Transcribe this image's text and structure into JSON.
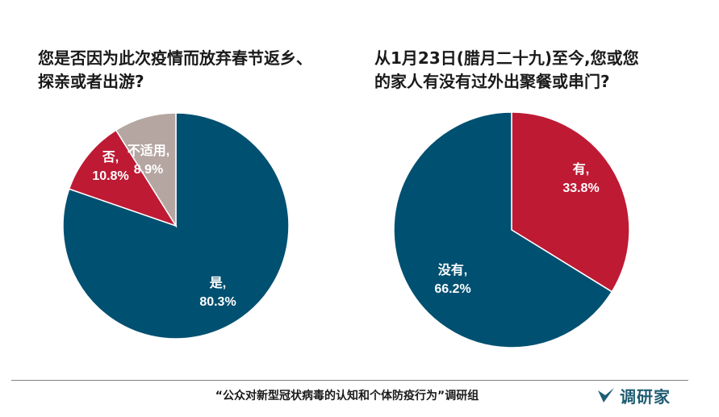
{
  "chart_data": [
    {
      "type": "pie",
      "title": "您是否因为此次疫情而放弃春节返乡、\n探亲或者出游?",
      "slices": [
        {
          "label": "是",
          "value": 80.3,
          "value_label": "80.3%",
          "color": "#005071"
        },
        {
          "label": "否",
          "value": 10.8,
          "value_label": "10.8%",
          "color": "#be1a34"
        },
        {
          "label": "不适用",
          "value": 8.9,
          "value_label": "8.9%",
          "color": "#b5a6a2"
        }
      ]
    },
    {
      "type": "pie",
      "title": "从1月23日(腊月二十九)至今,您或您\n的家人有没有过外出聚餐或串门?",
      "slices": [
        {
          "label": "有",
          "value": 33.8,
          "value_label": "33.8%",
          "color": "#be1a34"
        },
        {
          "label": "没有",
          "value": 66.2,
          "value_label": "66.2%",
          "color": "#005071"
        }
      ]
    }
  ],
  "footer": {
    "source": "“公众对新型冠状病毒的认知和个体防疫行为”调研组",
    "brand": "调研家",
    "brand_color": "#1f5d73"
  }
}
